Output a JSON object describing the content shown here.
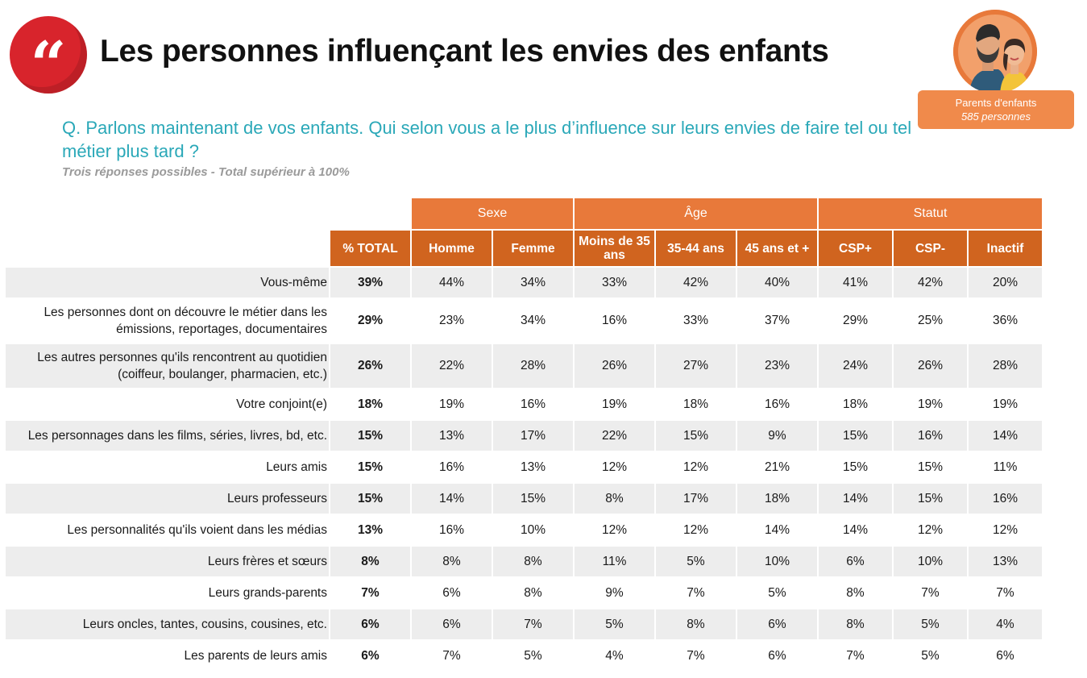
{
  "header": {
    "quote_glyph": "“",
    "title": "Les personnes influençant les envies des enfants"
  },
  "sample": {
    "label": "Parents d'enfants",
    "count": "585 personnes"
  },
  "question": "Q. Parlons maintenant de vos enfants. Qui selon vous a le plus d’influence sur leurs envies de faire tel ou tel métier plus tard ?",
  "note": "Trois réponses possibles - Total supérieur à 100%",
  "table": {
    "groups": [
      "Sexe",
      "Âge",
      "Statut"
    ],
    "columns": [
      "% TOTAL",
      "Homme",
      "Femme",
      "Moins de 35 ans",
      "35-44 ans",
      "45 ans et +",
      "CSP+",
      "CSP-",
      "Inactif"
    ],
    "rows": [
      {
        "label": "Vous-même",
        "values": [
          "39%",
          "44%",
          "34%",
          "33%",
          "42%",
          "40%",
          "41%",
          "42%",
          "20%"
        ]
      },
      {
        "label": "Les personnes dont on découvre le métier dans les émissions, reportages, documentaires",
        "values": [
          "29%",
          "23%",
          "34%",
          "16%",
          "33%",
          "37%",
          "29%",
          "25%",
          "36%"
        ]
      },
      {
        "label": "Les autres personnes qu'ils rencontrent au quotidien (coiffeur, boulanger, pharmacien, etc.)",
        "values": [
          "26%",
          "22%",
          "28%",
          "26%",
          "27%",
          "23%",
          "24%",
          "26%",
          "28%"
        ]
      },
      {
        "label": "Votre conjoint(e)",
        "values": [
          "18%",
          "19%",
          "16%",
          "19%",
          "18%",
          "16%",
          "18%",
          "19%",
          "19%"
        ]
      },
      {
        "label": "Les personnages dans les films, séries, livres, bd, etc.",
        "values": [
          "15%",
          "13%",
          "17%",
          "22%",
          "15%",
          "9%",
          "15%",
          "16%",
          "14%"
        ]
      },
      {
        "label": "Leurs amis",
        "values": [
          "15%",
          "16%",
          "13%",
          "12%",
          "12%",
          "21%",
          "15%",
          "15%",
          "11%"
        ]
      },
      {
        "label": "Leurs professeurs",
        "values": [
          "15%",
          "14%",
          "15%",
          "8%",
          "17%",
          "18%",
          "14%",
          "15%",
          "16%"
        ]
      },
      {
        "label": "Les personnalités qu'ils voient dans les médias",
        "values": [
          "13%",
          "16%",
          "10%",
          "12%",
          "12%",
          "14%",
          "14%",
          "12%",
          "12%"
        ]
      },
      {
        "label": "Leurs frères et sœurs",
        "values": [
          "8%",
          "8%",
          "8%",
          "11%",
          "5%",
          "10%",
          "6%",
          "10%",
          "13%"
        ]
      },
      {
        "label": "Leurs grands-parents",
        "values": [
          "7%",
          "6%",
          "8%",
          "9%",
          "7%",
          "5%",
          "8%",
          "7%",
          "7%"
        ]
      },
      {
        "label": "Leurs oncles, tantes, cousins, cousines, etc.",
        "values": [
          "6%",
          "6%",
          "7%",
          "5%",
          "8%",
          "6%",
          "8%",
          "5%",
          "4%"
        ]
      },
      {
        "label": "Les parents de leurs amis",
        "values": [
          "6%",
          "7%",
          "5%",
          "4%",
          "7%",
          "6%",
          "7%",
          "5%",
          "6%"
        ]
      }
    ]
  }
}
